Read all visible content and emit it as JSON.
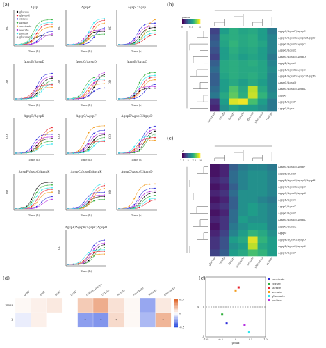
{
  "colors": {
    "accent_red": "#e8202a",
    "accent_blue": "#2b2bd9",
    "accent_cyan": "#2ee6ef",
    "accent_magenta": "#b52ee0",
    "accent_orange": "#f29a1a",
    "accent_green": "#2fae3a",
    "neg_blue": "#2f4fe0",
    "pos_orange": "#e06a2f"
  },
  "panels": {
    "a": {
      "label": "(a)"
    },
    "b": {
      "label": "(b)"
    },
    "c": {
      "label": "(c)"
    },
    "d": {
      "label": "(d)"
    },
    "e": {
      "label": "(e)"
    }
  },
  "chart_data": [
    {
      "panel": "a",
      "type": "line",
      "legend_entries": [
        "glucose",
        "glycerol",
        "citrate",
        "lactate",
        "succinate",
        "acetate",
        "proline",
        "gluconate"
      ],
      "legend_colors": [
        "#000000",
        "#e8202a",
        "#2b2bd9",
        "#2fae3a",
        "#f29a1a",
        "#b52ee0",
        "#2ee6ef",
        "#9a9a9a"
      ],
      "xlabel": "Time (h)",
      "ylabel": "OD",
      "subplots": [
        {
          "title": "Δgsp"
        },
        {
          "title": "ΔgspC"
        },
        {
          "title": "ΔgspC/Δgsp"
        },
        {
          "title": "ΔgspE/ΔgspD"
        },
        {
          "title": "ΔgspC/ΔgspD"
        },
        {
          "title": "ΔgspE/ΔgspC"
        },
        {
          "title": "ΔgspF/ΔgspK"
        },
        {
          "title": "ΔgspC/ΔgspF"
        },
        {
          "title": "ΔgspE/ΔgspC/ΔgspD"
        },
        {
          "title": "ΔgspF/ΔgspC/ΔgspK"
        },
        {
          "title": "ΔgspC/ΔgspE/ΔgspK"
        },
        {
          "title": "ΔgspC/ΔgspE/ΔgspD"
        },
        {
          "title": "ΔgspF/ΔgspK/ΔgspC/ΔgspD"
        }
      ]
    },
    {
      "panel": "b",
      "type": "heatmap",
      "colorbar_label": "μmax",
      "colorbar_ticks": [
        "0",
        "0.5",
        "1"
      ],
      "rows": [
        "ΔgspC/ΔgspF/ΔgspC",
        "ΔgspC/ΔgspE/ΔgspK/ΔgspC",
        "ΔgspC/ΔgspE/ΔgspC",
        "ΔgspC/ΔgspK",
        "ΔgspC/ΔgspE/ΔgspD",
        "ΔgspE/ΔgspC",
        "ΔgspE/ΔgspK/ΔgspC",
        "ΔgspE/ΔgspK/ΔgspC/ΔgspD",
        "ΔgspC/ΔgspD",
        "ΔgspC/ΔgspE/ΔgspK",
        "ΔgspC",
        "ΔgspE/ΔgspF",
        "ΔgspC/Δgsp"
      ],
      "cols": [
        "succinate",
        "citrate",
        "lactate",
        "acetate",
        "glucose",
        "gluconate",
        "proline"
      ],
      "values": [
        [
          0.2,
          0.55,
          0.62,
          0.58,
          0.6,
          0.55,
          0.4
        ],
        [
          0.25,
          0.6,
          0.62,
          0.6,
          0.62,
          0.55,
          0.45
        ],
        [
          0.3,
          0.58,
          0.65,
          0.6,
          0.62,
          0.58,
          0.45
        ],
        [
          0.25,
          0.55,
          0.62,
          0.58,
          0.6,
          0.55,
          0.45
        ],
        [
          0.2,
          0.55,
          0.6,
          0.55,
          0.58,
          0.55,
          0.4
        ],
        [
          0.3,
          0.6,
          0.62,
          0.6,
          0.62,
          0.58,
          0.45
        ],
        [
          0.35,
          0.6,
          0.62,
          0.6,
          0.6,
          0.58,
          0.48
        ],
        [
          0.3,
          0.58,
          0.62,
          0.6,
          0.62,
          0.58,
          0.45
        ],
        [
          0.3,
          0.55,
          0.6,
          0.55,
          0.6,
          0.55,
          0.45
        ],
        [
          0.35,
          0.55,
          0.72,
          0.6,
          0.9,
          0.6,
          0.45
        ],
        [
          0.4,
          0.6,
          0.75,
          0.62,
          0.92,
          0.65,
          0.48
        ],
        [
          0.15,
          0.55,
          0.95,
          0.98,
          0.7,
          0.55,
          0.4
        ],
        [
          0.1,
          0.5,
          0.6,
          0.55,
          0.55,
          0.5,
          0.4
        ]
      ]
    },
    {
      "panel": "c",
      "type": "heatmap",
      "colorbar_label": "λ",
      "colorbar_ticks": [
        "2.5",
        "5",
        "7.5",
        "10"
      ],
      "rows": [
        "ΔgspC/ΔgspE/ΔgspF",
        "ΔgspE/ΔgspD",
        "ΔgspF/ΔgspC/ΔgspE/ΔgspK",
        "ΔgspC/ΔgspE/ΔgspD",
        "ΔgspC/ΔgspE/ΔgspK",
        "ΔgspE/ΔgspC",
        "ΔgspC/ΔgspK",
        "ΔgspC/ΔgspF",
        "ΔgspC/ΔgspE/ΔgspK",
        "ΔgspC/ΔgspK",
        "ΔgspC",
        "ΔgspE/ΔgspC/ΔgspD",
        "ΔgspF/ΔgspC/ΔgspK",
        "ΔgspC/ΔgspF"
      ],
      "cols": [
        "glucose",
        "citrate",
        "lactate",
        "succinate",
        "acetate",
        "gluconate",
        "proline"
      ],
      "values": [
        [
          0.05,
          0.1,
          0.3,
          0.4,
          0.45,
          0.45,
          0.4
        ],
        [
          0.05,
          0.1,
          0.35,
          0.45,
          0.5,
          0.5,
          0.45
        ],
        [
          0.1,
          0.15,
          0.35,
          0.45,
          0.5,
          0.5,
          0.45
        ],
        [
          0.05,
          0.1,
          0.3,
          0.45,
          0.5,
          0.5,
          0.45
        ],
        [
          0.1,
          0.15,
          0.35,
          0.5,
          0.5,
          0.5,
          0.45
        ],
        [
          0.05,
          0.1,
          0.3,
          0.5,
          0.5,
          0.45,
          0.4
        ],
        [
          0.1,
          0.15,
          0.3,
          0.5,
          0.55,
          0.5,
          0.45
        ],
        [
          0.05,
          0.1,
          0.35,
          0.5,
          0.55,
          0.5,
          0.45
        ],
        [
          0.1,
          0.15,
          0.35,
          0.55,
          0.5,
          0.5,
          0.45
        ],
        [
          0.05,
          0.15,
          0.4,
          0.5,
          0.55,
          0.55,
          0.45
        ],
        [
          0.1,
          0.2,
          0.45,
          0.55,
          0.65,
          0.6,
          0.5
        ],
        [
          0.15,
          0.25,
          0.55,
          0.6,
          0.95,
          0.65,
          0.55
        ],
        [
          0.15,
          0.25,
          0.5,
          0.55,
          0.9,
          0.6,
          0.55
        ],
        [
          0.2,
          0.3,
          0.55,
          0.6,
          0.7,
          0.65,
          0.55
        ]
      ]
    },
    {
      "panel": "d",
      "type": "heatmap",
      "row_labels": [
        "μmax",
        "λ"
      ],
      "col_labels": [
        "gspF",
        "gspE",
        "gspC",
        "gspD",
        "carbon source",
        "citrate",
        "lactate",
        "succinate",
        "acetate",
        "gluconate"
      ],
      "colorbar_ticks": [
        "0.5",
        "0",
        "-0.5"
      ],
      "values": [
        [
          0.05,
          0.1,
          0.15,
          0.0,
          0.35,
          0.55,
          0.2,
          0.05,
          -0.5,
          0.15
        ],
        [
          -0.1,
          0.1,
          0.0,
          0.0,
          -0.55,
          -0.6,
          0.25,
          0.05,
          -0.4,
          0.5
        ]
      ],
      "cell_marks": [
        [
          "",
          "",
          "",
          "",
          "",
          "",
          "",
          "",
          "",
          ""
        ],
        [
          "",
          "",
          "",
          "",
          "*",
          "*",
          "*",
          "",
          "",
          "*"
        ]
      ]
    },
    {
      "panel": "e",
      "type": "scatter",
      "xlabel": "μmax",
      "ylabel": "λ",
      "xlim": [
        -1.0,
        1.0
      ],
      "ylim": [
        -1.0,
        1.0
      ],
      "legend_entries": [
        "succinate",
        "citrate",
        "lactate",
        "acetate",
        "gluconate",
        "proline"
      ],
      "points": [
        {
          "name": "succinate",
          "x": -0.3,
          "y": -0.55,
          "color": "#2b2bd9"
        },
        {
          "name": "citrate",
          "x": -0.45,
          "y": -0.25,
          "color": "#2fae3a"
        },
        {
          "name": "lactate",
          "x": 0.1,
          "y": 0.65,
          "color": "#e8202a"
        },
        {
          "name": "acetate",
          "x": 0.0,
          "y": 0.55,
          "color": "#f29a1a"
        },
        {
          "name": "gluconate",
          "x": 0.45,
          "y": -0.85,
          "color": "#2ee6ef"
        },
        {
          "name": "proline",
          "x": 0.3,
          "y": -0.6,
          "color": "#b52ee0"
        }
      ],
      "xticks": [
        "-1.0",
        "-0.5",
        "0",
        "0.5",
        "1.0"
      ],
      "yticks": [
        "1",
        "0",
        "-1"
      ]
    }
  ]
}
